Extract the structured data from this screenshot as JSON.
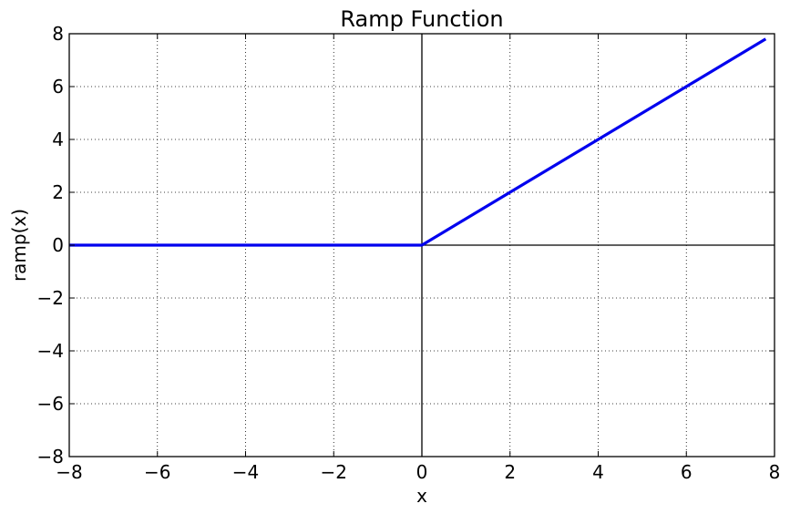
{
  "chart_data": {
    "type": "line",
    "title": "Ramp Function",
    "xlabel": "x",
    "ylabel": "ramp(x)",
    "xlim": [
      -8,
      8
    ],
    "ylim": [
      -8,
      8
    ],
    "xticks": [
      -8,
      -6,
      -4,
      -2,
      0,
      2,
      4,
      6,
      8
    ],
    "yticks": [
      -8,
      -6,
      -4,
      -2,
      0,
      2,
      4,
      6,
      8
    ],
    "xtick_labels": [
      "−8",
      "−6",
      "−4",
      "−2",
      "0",
      "2",
      "4",
      "6",
      "8"
    ],
    "ytick_labels": [
      "−8",
      "−6",
      "−4",
      "−2",
      "0",
      "2",
      "4",
      "6",
      "8"
    ],
    "grid": true,
    "grid_style": "dotted",
    "reference_lines": {
      "x": 0,
      "y": 0
    },
    "series": [
      {
        "x": [
          -8,
          0,
          7.8
        ],
        "y": [
          0,
          0,
          7.8
        ],
        "color": "#0000ee"
      }
    ]
  }
}
